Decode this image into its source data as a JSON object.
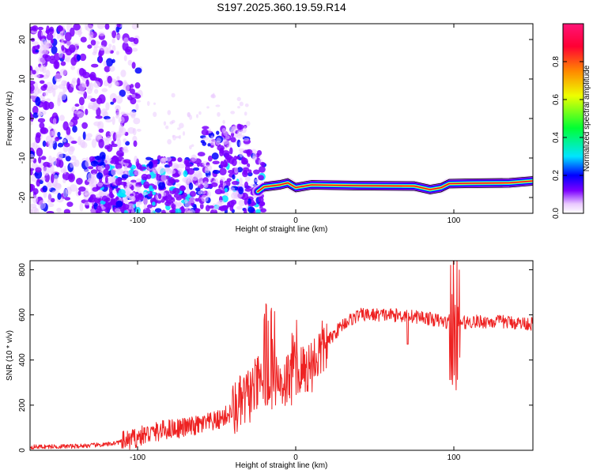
{
  "title": "S197.2025.360.19.59.R14",
  "chart_data": [
    {
      "type": "heatmap",
      "xlabel": "Height of straight line (km)",
      "ylabel": "Frequency (Hz)",
      "xlim": [
        -168,
        150
      ],
      "ylim": [
        -24,
        24
      ],
      "x_ticks": [
        -100,
        0,
        100
      ],
      "y_ticks": [
        20,
        10,
        0,
        -10,
        -20
      ],
      "colorbar": {
        "label": "Normalized spectral amplitude",
        "range": [
          0,
          1
        ],
        "ticks": [
          0.0,
          0.2,
          0.4,
          0.6,
          0.8
        ],
        "colormap": [
          "#ffffff",
          "#e9c8ff",
          "#7c00ff",
          "#0000ff",
          "#00e5ff",
          "#00ff33",
          "#eeff00",
          "#ff8800",
          "#ff0033",
          "#ff1477"
        ]
      },
      "ridge": {
        "description_points": [
          {
            "x": -24,
            "y": -18.5
          },
          {
            "x": -20,
            "y": -17.3
          },
          {
            "x": -10,
            "y": -16.8
          },
          {
            "x": -5,
            "y": -16.3
          },
          {
            "x": 0,
            "y": -17.5
          },
          {
            "x": 10,
            "y": -16.8
          },
          {
            "x": 40,
            "y": -17.0
          },
          {
            "x": 75,
            "y": -17.1
          },
          {
            "x": 85,
            "y": -18.0
          },
          {
            "x": 92,
            "y": -17.5
          },
          {
            "x": 97,
            "y": -16.5
          },
          {
            "x": 110,
            "y": -16.4
          },
          {
            "x": 135,
            "y": -16.3
          },
          {
            "x": 150,
            "y": -15.8
          }
        ]
      }
    },
    {
      "type": "line",
      "xlabel": "Height of straight line (km)",
      "ylabel": "SNR (10 * v/v)",
      "xlim": [
        -168,
        150
      ],
      "ylim": [
        0,
        840
      ],
      "x_ticks": [
        -100,
        0,
        100
      ],
      "y_ticks": [
        0,
        200,
        400,
        600,
        800
      ],
      "series": [
        {
          "color": "#ee2222",
          "trend": [
            [
              -168,
              15
            ],
            [
              -140,
              18
            ],
            [
              -120,
              25
            ],
            [
              -105,
              45
            ],
            [
              -95,
              70
            ],
            [
              -80,
              95
            ],
            [
              -65,
              105
            ],
            [
              -50,
              130
            ],
            [
              -40,
              170
            ],
            [
              -30,
              240
            ],
            [
              -20,
              320
            ],
            [
              -10,
              300
            ],
            [
              0,
              330
            ],
            [
              10,
              380
            ],
            [
              20,
              480
            ],
            [
              30,
              560
            ],
            [
              40,
              600
            ],
            [
              60,
              600
            ],
            [
              80,
              590
            ],
            [
              100,
              560
            ],
            [
              110,
              570
            ],
            [
              130,
              570
            ],
            [
              150,
              560
            ]
          ]
        }
      ]
    }
  ]
}
